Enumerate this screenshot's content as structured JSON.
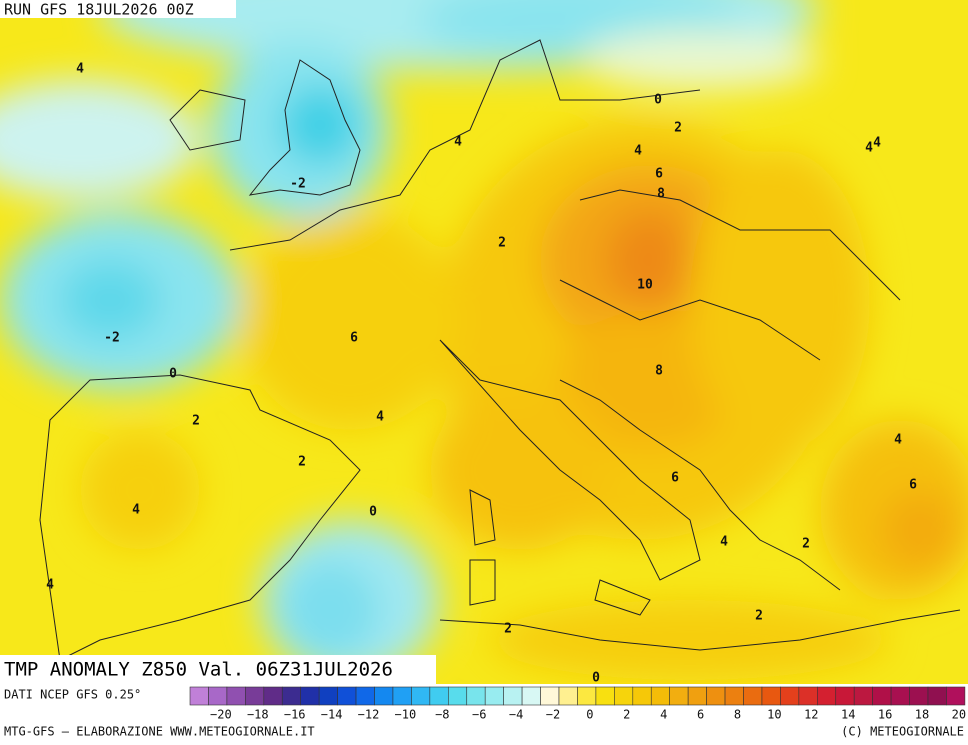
{
  "header": {
    "run": "RUN GFS 18JUL2026 00Z"
  },
  "map": {
    "labels": [
      "4",
      "0",
      "2",
      "4",
      "4",
      "4",
      "4",
      "6",
      "-2",
      "8",
      "2",
      "10",
      "-2",
      "6",
      "0",
      "8",
      "2",
      "4",
      "4",
      "2",
      "6",
      "6",
      "4",
      "0",
      "4",
      "2",
      "4",
      "2",
      "2",
      "0"
    ]
  },
  "footer": {
    "title": "TMP ANOMALY Z850 Val. 06Z31JUL2026",
    "source": "DATI NCEP GFS 0.25°",
    "credit": "MTG-GFS — ELABORAZIONE WWW.METEOGIORNALE.IT",
    "copyright": "(C) METEOGIORNALE"
  },
  "scale": {
    "labels": [
      "−20",
      "−18",
      "−16",
      "−14",
      "−12",
      "−10",
      "−8",
      "−6",
      "−4",
      "−2",
      "0",
      "2",
      "4",
      "6",
      "8",
      "10",
      "12",
      "14",
      "16",
      "18",
      "20"
    ]
  }
}
